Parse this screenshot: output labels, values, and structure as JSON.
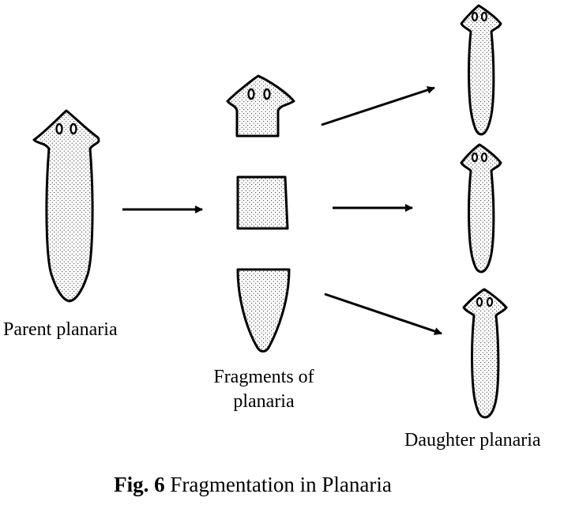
{
  "labels": {
    "parent": "Parent planaria",
    "fragments_line1": "Fragments of",
    "fragments_line2": "planaria",
    "daughter": "Daughter planaria"
  },
  "caption": {
    "prefix": "Fig. 6",
    "text": "Fragmentation in Planaria"
  },
  "colors": {
    "stroke": "#000000",
    "fill": "#ffffff",
    "stipple": "#000000"
  }
}
